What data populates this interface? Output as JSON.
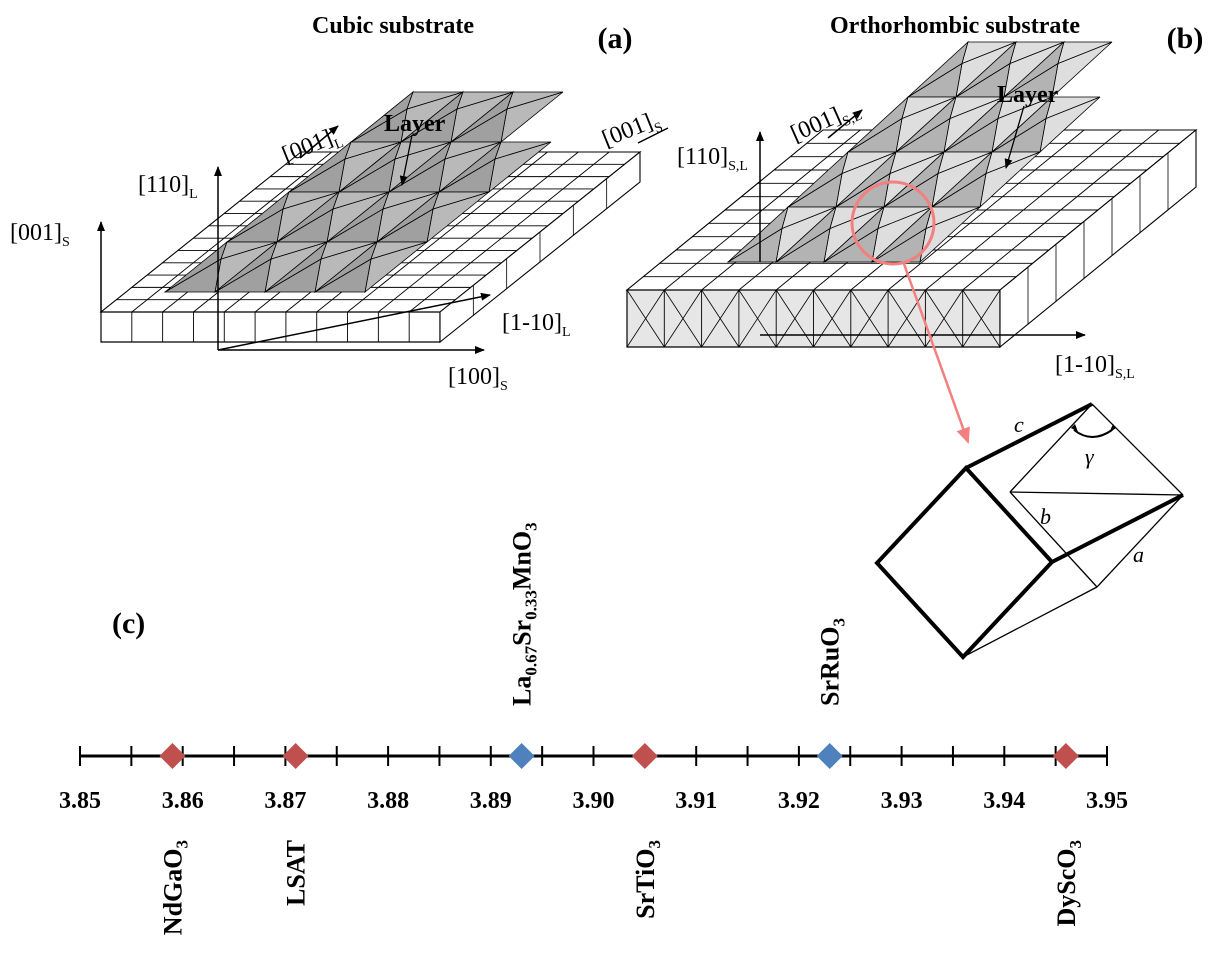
{
  "panel_a": {
    "title": "Cubic substrate",
    "tag": "(a)",
    "layer_label": "Layer",
    "axes": {
      "substrate_001": "[001]",
      "substrate_001_sub": "S",
      "layer_110": "[110]",
      "layer_110_sub": "L",
      "layer_001": "[001]",
      "layer_001_sub": "L",
      "substrate_001_right": "[001]",
      "substrate_001_right_sub": "S",
      "layer_1m10": "[1-10]",
      "layer_1m10_sub": "L",
      "substrate_100": "[100]",
      "substrate_100_sub": "S"
    }
  },
  "panel_b": {
    "title": "Orthorhombic substrate",
    "tag": "(b)",
    "layer_label": "Layer",
    "axes": {
      "sl_110": "[110]",
      "sl_110_sub": "S,L",
      "sl_001": "[001]",
      "sl_001_sub": "S,L",
      "sl_1m10": "[1-10]",
      "sl_1m10_sub": "S,L"
    },
    "cell_labels": {
      "a": "a",
      "b": "b",
      "c": "c",
      "gamma": "γ"
    }
  },
  "panel_c": {
    "tag": "(c)",
    "axis": {
      "min": 3.85,
      "max": 3.95,
      "ticks": [
        "3.85",
        "3.86",
        "3.87",
        "3.88",
        "3.89",
        "3.90",
        "3.91",
        "3.92",
        "3.93",
        "3.94",
        "3.95"
      ]
    },
    "substrates": [
      {
        "value": 3.859,
        "label": "NdGaO",
        "sub": "3"
      },
      {
        "value": 3.871,
        "label": "LSAT",
        "sub": ""
      },
      {
        "value": 3.905,
        "label": "SrTiO",
        "sub": "3"
      },
      {
        "value": 3.946,
        "label": "DyScO",
        "sub": "3"
      }
    ],
    "films": [
      {
        "value": 3.893,
        "parts": [
          "La",
          "0.67",
          "Sr",
          "0.33",
          "MnO",
          "3"
        ]
      },
      {
        "value": 3.923,
        "parts": [
          "SrRuO",
          "3"
        ]
      }
    ],
    "colors": {
      "substrate": "#c0504d",
      "film": "#4f81bd",
      "highlight": "#f47f7f"
    }
  }
}
